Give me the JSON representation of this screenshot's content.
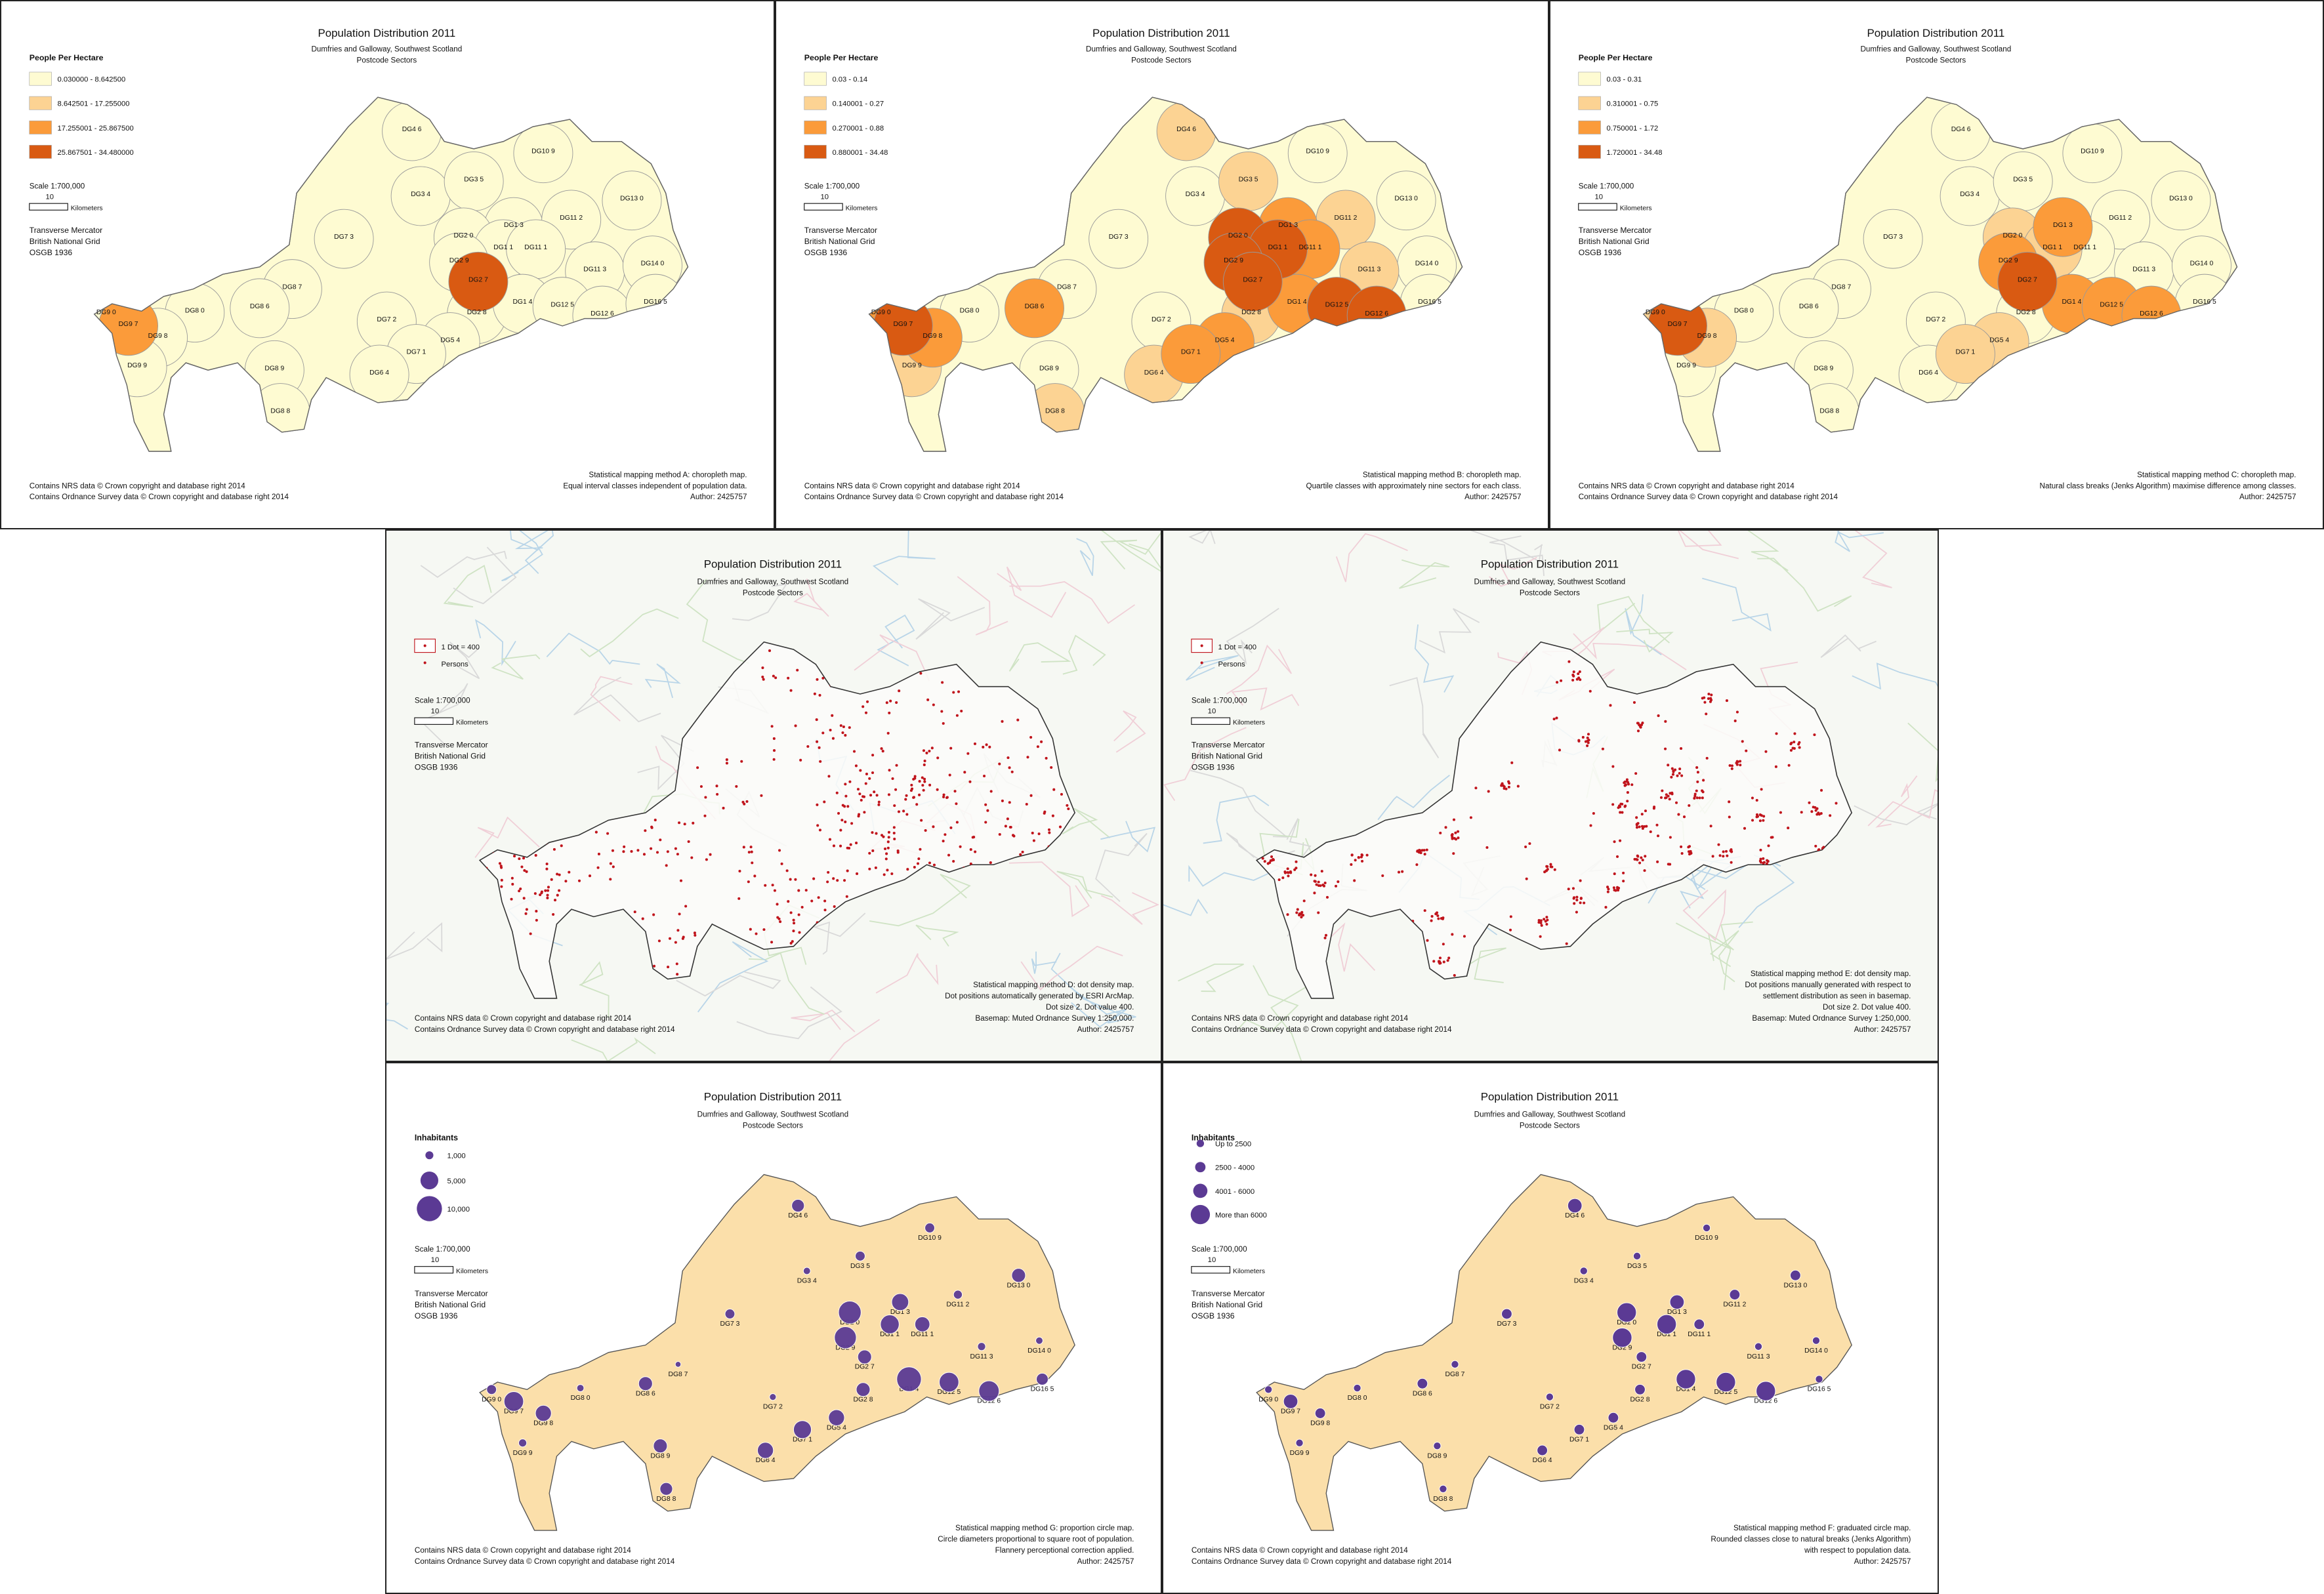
{
  "sector_labels": [
    "DG4 6",
    "DG10 9",
    "DG3 4",
    "DG3 5",
    "DG1 3",
    "DG2 0",
    "DG11 2",
    "DG13 0",
    "DG7 3",
    "DG1 1",
    "DG11 1",
    "DG2 9",
    "DG2 7",
    "DG11 3",
    "DG14 0",
    "DG8 7",
    "DG8 6",
    "DG8 0",
    "DG9 0",
    "DG9 7",
    "DG9 8",
    "DG7 2",
    "DG2 8",
    "DG1 4",
    "DG12 5",
    "DG12 6",
    "DG16 5",
    "DG5 4",
    "DG7 1",
    "DG6 4",
    "DG9 9",
    "DG8 9",
    "DG8 8"
  ],
  "panels": [
    {
      "kind": "choropleth",
      "title": "Population Distribution 2011",
      "subtitle": [
        "Dumfries and Galloway, Southwest Scotland",
        "Postcode Sectors"
      ],
      "legend": {
        "title": "People Per Hectare",
        "items": [
          "0.030000 - 8.642500",
          "8.642501 - 17.255000",
          "17.255001 - 25.867500",
          "25.867501 - 34.480000"
        ],
        "colors": [
          "#fefbd2",
          "#fcd393",
          "#fb9b3a",
          "#d95a12"
        ]
      },
      "sector_classes": [
        0,
        0,
        0,
        0,
        0,
        0,
        0,
        0,
        0,
        0,
        0,
        0,
        3,
        0,
        0,
        0,
        0,
        0,
        0,
        2,
        0,
        0,
        0,
        0,
        0,
        0,
        0,
        0,
        0,
        0,
        0,
        0,
        0
      ],
      "scale": {
        "ratio": "Scale 1:700,000",
        "distance": "10",
        "unit": "Kilometers"
      },
      "projection": [
        "Transverse Mercator",
        "British National Grid",
        "OSGB 1936"
      ],
      "credits": [
        "Contains NRS data © Crown copyright and database right 2014",
        "Contains Ordnance Survey data © Crown copyright and database right 2014"
      ],
      "method": [
        "Statistical mapping method A: choropleth map.",
        "Equal interval classes independent of population data.",
        "Author: 2425757"
      ]
    },
    {
      "kind": "choropleth",
      "title": "Population Distribution 2011",
      "subtitle": [
        "Dumfries and Galloway, Southwest Scotland",
        "Postcode Sectors"
      ],
      "legend": {
        "title": "People Per Hectare",
        "items": [
          "0.03 - 0.14",
          "0.140001 - 0.27",
          "0.270001 - 0.88",
          "0.880001 - 34.48"
        ],
        "colors": [
          "#fefbd2",
          "#fcd393",
          "#fb9b3a",
          "#d95a12"
        ]
      },
      "sector_classes": [
        1,
        0,
        0,
        1,
        2,
        3,
        1,
        0,
        0,
        3,
        2,
        3,
        3,
        1,
        0,
        0,
        2,
        0,
        2,
        3,
        2,
        0,
        1,
        2,
        3,
        3,
        0,
        2,
        2,
        1,
        1,
        0,
        1
      ],
      "scale": {
        "ratio": "Scale 1:700,000",
        "distance": "10",
        "unit": "Kilometers"
      },
      "projection": [
        "Transverse Mercator",
        "British National Grid",
        "OSGB 1936"
      ],
      "credits": [
        "Contains NRS data © Crown copyright and database right 2014",
        "Contains Ordnance Survey data © Crown copyright and database right 2014"
      ],
      "method": [
        "Statistical mapping method B: choropleth map.",
        "Quartile classes with approximately nine sectors for each class.",
        "Author: 2425757"
      ]
    },
    {
      "kind": "choropleth",
      "title": "Population Distribution 2011",
      "subtitle": [
        "Dumfries and Galloway, Southwest Scotland",
        "Postcode Sectors"
      ],
      "legend": {
        "title": "People Per Hectare",
        "items": [
          "0.03 - 0.31",
          "0.310001 - 0.75",
          "0.750001 - 1.72",
          "1.720001 - 34.48"
        ],
        "colors": [
          "#fefbd2",
          "#fcd393",
          "#fb9b3a",
          "#d95a12"
        ]
      },
      "sector_classes": [
        0,
        0,
        0,
        0,
        2,
        1,
        0,
        0,
        0,
        1,
        0,
        2,
        3,
        0,
        0,
        0,
        0,
        0,
        1,
        3,
        1,
        0,
        0,
        2,
        2,
        2,
        0,
        1,
        1,
        0,
        0,
        0,
        0
      ],
      "scale": {
        "ratio": "Scale 1:700,000",
        "distance": "10",
        "unit": "Kilometers"
      },
      "projection": [
        "Transverse Mercator",
        "British National Grid",
        "OSGB 1936"
      ],
      "credits": [
        "Contains NRS data © Crown copyright and database right 2014",
        "Contains Ordnance Survey data © Crown copyright and database right 2014"
      ],
      "method": [
        "Statistical mapping method C: choropleth map.",
        "Natural class breaks (Jenks Algorithm) maximise difference among classes.",
        "Author: 2425757"
      ]
    },
    {
      "kind": "dot_density",
      "title": "Population Distribution 2011",
      "subtitle": [
        "Dumfries and Galloway, Southwest Scotland",
        "Postcode Sectors"
      ],
      "legend": {
        "items": [
          "1 Dot = 400",
          "Persons"
        ],
        "colors": [
          "#c0141c"
        ]
      },
      "dot_placement": "scattered",
      "scale": {
        "ratio": "Scale 1:700,000",
        "distance": "10",
        "unit": "Kilometers"
      },
      "projection": [
        "Transverse Mercator",
        "British National Grid",
        "OSGB 1936"
      ],
      "credits": [
        "Contains NRS data © Crown copyright and database right 2014",
        "Contains Ordnance Survey data © Crown copyright and database right 2014"
      ],
      "method": [
        "Statistical mapping method D: dot density map.",
        "Dot positions automatically generated by ESRI ArcMap.",
        "Dot size 2. Dot value 400.",
        "Basemap: Muted Ordnance Survey 1:250,000.",
        "Author: 2425757"
      ]
    },
    {
      "kind": "dot_density",
      "title": "Population Distribution 2011",
      "subtitle": [
        "Dumfries and Galloway, Southwest Scotland",
        "Postcode Sectors"
      ],
      "legend": {
        "items": [
          "1 Dot = 400",
          "Persons"
        ],
        "colors": [
          "#c0141c"
        ]
      },
      "dot_placement": "clustered",
      "scale": {
        "ratio": "Scale 1:700,000",
        "distance": "10",
        "unit": "Kilometers"
      },
      "projection": [
        "Transverse Mercator",
        "British National Grid",
        "OSGB 1936"
      ],
      "credits": [
        "Contains NRS data © Crown copyright and database right 2014",
        "Contains Ordnance Survey data © Crown copyright and database right 2014"
      ],
      "method": [
        "Statistical mapping method E: dot density map.",
        "Dot positions manually generated with respect to",
        "settlement distribution as seen in basemap.",
        "Dot size 2. Dot value 400.",
        "Basemap: Muted Ordnance Survey 1:250,000.",
        "Author: 2425757"
      ]
    },
    {
      "kind": "proportional_circles",
      "title": "Population Distribution 2011",
      "subtitle": [
        "Dumfries and Galloway, Southwest Scotland",
        "Postcode Sectors"
      ],
      "legend": {
        "title": "Inhabitants",
        "items": [
          {
            "value": 1000,
            "label": "1,000"
          },
          {
            "value": 5000,
            "label": "5,000"
          },
          {
            "value": 10000,
            "label": "10,000"
          }
        ],
        "colors": [
          "#5b3a94"
        ]
      },
      "sector_population": [
        2500,
        1500,
        800,
        1500,
        4500,
        8000,
        1200,
        3000,
        1500,
        5500,
        3500,
        7500,
        3000,
        1000,
        800,
        500,
        3000,
        800,
        1500,
        6000,
        4000,
        700,
        3000,
        9500,
        6000,
        6500,
        2200,
        4000,
        5000,
        4000,
        1000,
        3000,
        2500
      ],
      "scale": {
        "ratio": "Scale 1:700,000",
        "distance": "10",
        "unit": "Kilometers"
      },
      "projection": [
        "Transverse Mercator",
        "British National Grid",
        "OSGB 1936"
      ],
      "credits": [
        "Contains NRS data © Crown copyright and database right 2014",
        "Contains Ordnance Survey data © Crown copyright and database right 2014"
      ],
      "method": [
        "Statistical mapping method G: proportion circle map.",
        "Circle diameters proportional to square root of population.",
        "Flannery perceptional correction applied.",
        "Author: 2425757"
      ]
    },
    {
      "kind": "graduated_circles",
      "title": "Population Distribution 2011",
      "subtitle": [
        "Dumfries and Galloway, Southwest Scotland",
        "Postcode Sectors"
      ],
      "legend": {
        "title": "Inhabitants",
        "items": [
          "Up to 2500",
          "2500 - 4000",
          "4001 - 6000",
          "More than 6000"
        ],
        "colors": [
          "#5b3a94"
        ]
      },
      "sector_classes": [
        2,
        0,
        0,
        0,
        2,
        3,
        1,
        1,
        1,
        3,
        1,
        3,
        1,
        0,
        0,
        0,
        1,
        0,
        0,
        2,
        1,
        0,
        1,
        3,
        3,
        3,
        0,
        1,
        1,
        1,
        0,
        0,
        0
      ],
      "scale": {
        "ratio": "Scale 1:700,000",
        "distance": "10",
        "unit": "Kilometers"
      },
      "projection": [
        "Transverse Mercator",
        "British National Grid",
        "OSGB 1936"
      ],
      "credits": [
        "Contains NRS data © Crown copyright and database right 2014",
        "Contains Ordnance Survey data © Crown copyright and database right 2014"
      ],
      "method": [
        "Statistical mapping method F: graduated circle map.",
        "Rounded classes close to natural breaks (Jenks Algorithm)",
        "with respect to population data.",
        "Author: 2425757"
      ]
    }
  ]
}
